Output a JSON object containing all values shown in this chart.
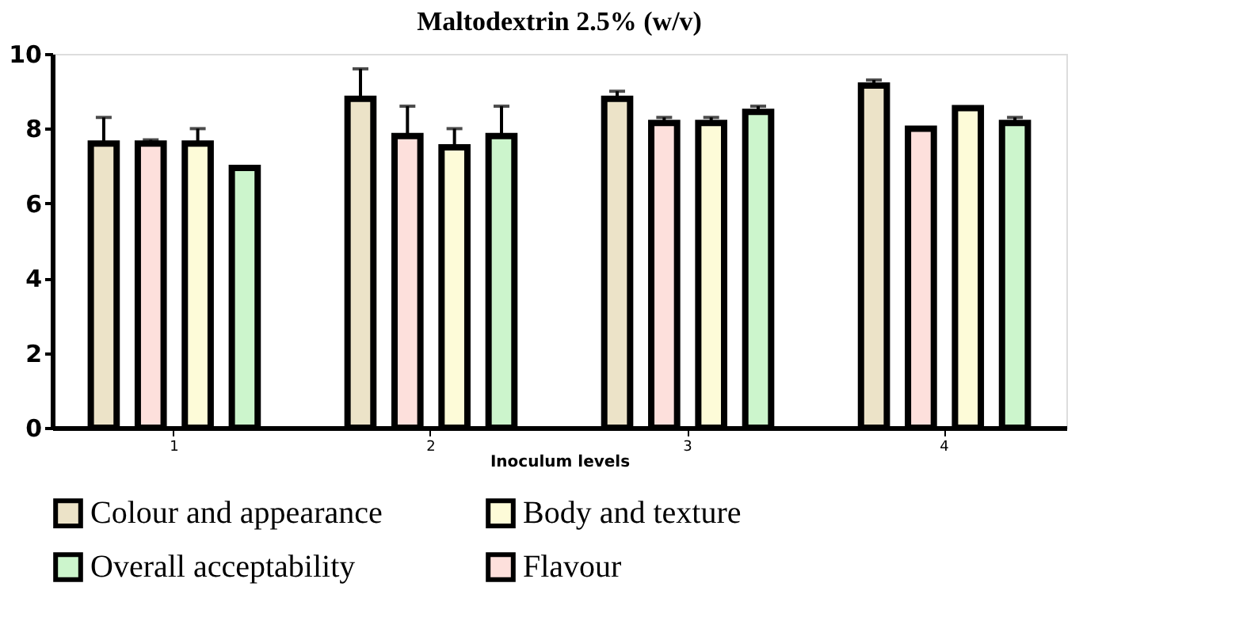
{
  "chart_data": {
    "type": "bar",
    "title": "Maltodextrin 2.5% (w/v)",
    "xlabel": "Inoculum levels",
    "categories": [
      "1",
      "2",
      "3",
      "4"
    ],
    "series": [
      {
        "name": "Colour and appearance",
        "color": "#ece3c8",
        "values": [
          7.6,
          8.8,
          8.8,
          9.15
        ],
        "errors": [
          0.7,
          0.8,
          0.2,
          0.15
        ]
      },
      {
        "name": "Flavour",
        "color": "#fde0dc",
        "values": [
          7.6,
          7.8,
          8.15,
          8.0
        ],
        "errors": [
          0.1,
          0.8,
          0.15,
          null
        ]
      },
      {
        "name": "Body and texture",
        "color": "#fdfbd8",
        "values": [
          7.6,
          7.5,
          8.15,
          8.55
        ],
        "errors": [
          0.4,
          0.5,
          0.15,
          null
        ]
      },
      {
        "name": "Overall acceptability",
        "color": "#ccf5cc",
        "values": [
          6.95,
          7.8,
          8.45,
          8.15
        ],
        "errors": [
          null,
          0.8,
          0.15,
          0.15
        ]
      }
    ],
    "ylim": [
      0,
      10
    ],
    "yticks": [
      0,
      2,
      4,
      6,
      8,
      10
    ],
    "grid": false,
    "legend": "bottom"
  }
}
